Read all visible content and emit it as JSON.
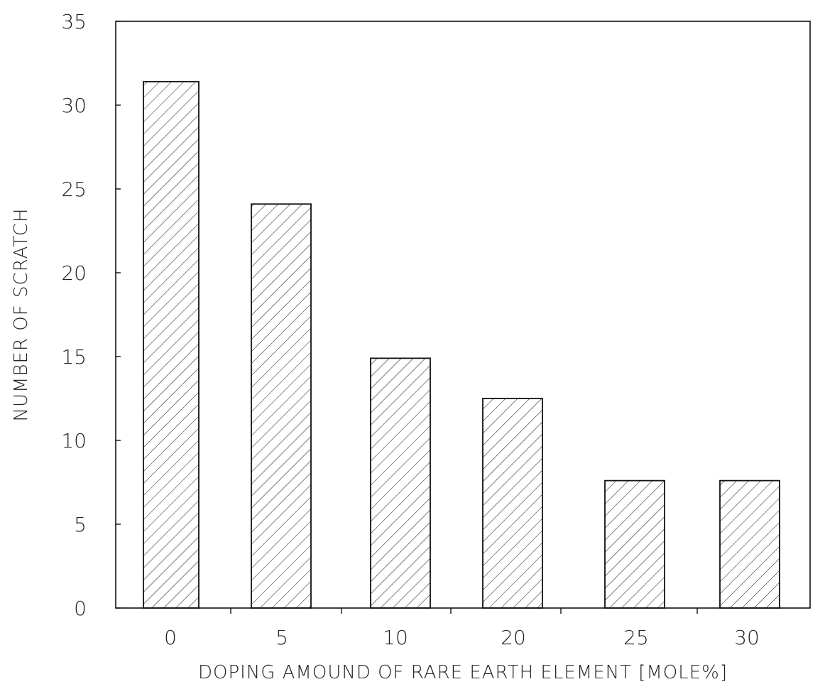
{
  "chart_data": {
    "type": "bar",
    "categories": [
      "0",
      "5",
      "10",
      "20",
      "25",
      "30"
    ],
    "values": [
      31.4,
      24.1,
      14.9,
      12.5,
      7.6,
      7.6
    ],
    "title": "",
    "xlabel": "DOPING AMOUND OF RARE EARTH ELEMENT [MOLE%]",
    "ylabel": "NUMBER OF SCRATCH",
    "ylim": [
      0,
      35
    ],
    "yticks": [
      "0",
      "5",
      "10",
      "15",
      "20",
      "25",
      "30",
      "35"
    ],
    "grid": false,
    "legend": "none",
    "bar_fill": "hatched",
    "colors": {
      "bar_stroke": "#111111",
      "hatch": "#222222",
      "axis": "#111111",
      "text": "#222222"
    }
  }
}
